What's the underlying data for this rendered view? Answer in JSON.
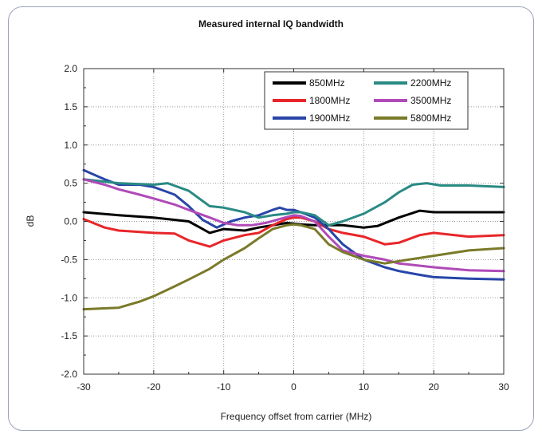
{
  "chart_data": {
    "type": "line",
    "title": "Measured internal IQ bandwidth",
    "xlabel": "Frequency offset from carrier (MHz)",
    "ylabel": "dB",
    "xlim": [
      -30,
      30
    ],
    "ylim": [
      -2.0,
      2.0
    ],
    "xticks": [
      "-30",
      "-20",
      "-10",
      "0",
      "10",
      "20",
      "30"
    ],
    "yticks": [
      "2.0",
      "1.5",
      "1.0",
      "0.5",
      "0.0",
      "-0.5",
      "-1.0",
      "-1.5",
      "-2.0"
    ],
    "grid": true,
    "legend_position": "top-right",
    "series": [
      {
        "name": "850MHz",
        "color": "#000000",
        "x": [
          -30,
          -25,
          -20,
          -15,
          -12,
          -10,
          -7,
          -5,
          -3,
          -1,
          0,
          1,
          3,
          5,
          7,
          10,
          12,
          15,
          18,
          20,
          25,
          30
        ],
        "y": [
          0.12,
          0.08,
          0.05,
          0.0,
          -0.15,
          -0.1,
          -0.12,
          -0.08,
          -0.05,
          -0.02,
          -0.03,
          -0.04,
          -0.05,
          -0.05,
          -0.05,
          -0.08,
          -0.06,
          0.05,
          0.14,
          0.12,
          0.12,
          0.12
        ]
      },
      {
        "name": "1800MHz",
        "color": "#e8262a",
        "x": [
          -30,
          -27,
          -25,
          -20,
          -17,
          -15,
          -12,
          -10,
          -7,
          -5,
          -3,
          -1,
          0,
          1,
          3,
          5,
          7,
          10,
          13,
          15,
          18,
          20,
          25,
          30
        ],
        "y": [
          0.03,
          -0.08,
          -0.12,
          -0.15,
          -0.16,
          -0.25,
          -0.33,
          -0.25,
          -0.18,
          -0.15,
          -0.05,
          0.03,
          0.05,
          0.05,
          0.0,
          -0.1,
          -0.15,
          -0.2,
          -0.3,
          -0.28,
          -0.18,
          -0.15,
          -0.2,
          -0.18
        ]
      },
      {
        "name": "1900MHz",
        "color": "#2845a8",
        "x": [
          -30,
          -27,
          -25,
          -22,
          -20,
          -17,
          -15,
          -13,
          -11,
          -9,
          -7,
          -5,
          -3,
          -2,
          -1,
          0,
          1,
          3,
          5,
          7,
          10,
          13,
          15,
          18,
          20,
          25,
          30
        ],
        "y": [
          0.67,
          0.55,
          0.48,
          0.48,
          0.45,
          0.35,
          0.2,
          0.02,
          -0.08,
          0.0,
          0.05,
          0.08,
          0.15,
          0.18,
          0.15,
          0.15,
          0.12,
          0.05,
          -0.1,
          -0.3,
          -0.5,
          -0.6,
          -0.65,
          -0.7,
          -0.73,
          -0.75,
          -0.76
        ]
      },
      {
        "name": "2200MHz",
        "color": "#2a8a84",
        "x": [
          -30,
          -25,
          -20,
          -18,
          -15,
          -12,
          -10,
          -7,
          -5,
          -3,
          -1,
          0,
          1,
          3,
          5,
          7,
          10,
          13,
          15,
          17,
          19,
          21,
          25,
          30
        ],
        "y": [
          0.55,
          0.5,
          0.48,
          0.5,
          0.4,
          0.2,
          0.18,
          0.12,
          0.05,
          0.08,
          0.1,
          0.12,
          0.12,
          0.08,
          -0.05,
          0.0,
          0.1,
          0.25,
          0.38,
          0.48,
          0.5,
          0.47,
          0.47,
          0.45
        ]
      },
      {
        "name": "3500MHz",
        "color": "#b04ab8",
        "x": [
          -30,
          -27,
          -25,
          -22,
          -20,
          -17,
          -15,
          -12,
          -10,
          -8,
          -6,
          -4,
          -2,
          0,
          1,
          3,
          5,
          7,
          10,
          13,
          15,
          20,
          25,
          30
        ],
        "y": [
          0.55,
          0.48,
          0.42,
          0.35,
          0.3,
          0.22,
          0.15,
          0.05,
          -0.02,
          -0.05,
          -0.05,
          -0.02,
          0.03,
          0.08,
          0.07,
          0.0,
          -0.2,
          -0.38,
          -0.45,
          -0.5,
          -0.55,
          -0.6,
          -0.64,
          -0.65
        ]
      },
      {
        "name": "5800MHz",
        "color": "#7a7a2a",
        "x": [
          -30,
          -25,
          -22,
          -20,
          -17,
          -15,
          -12,
          -10,
          -7,
          -5,
          -3,
          -1,
          0,
          1,
          3,
          5,
          7,
          10,
          13,
          15,
          20,
          25,
          30
        ],
        "y": [
          -1.15,
          -1.13,
          -1.05,
          -0.98,
          -0.85,
          -0.76,
          -0.62,
          -0.5,
          -0.35,
          -0.22,
          -0.1,
          -0.05,
          -0.04,
          -0.05,
          -0.1,
          -0.3,
          -0.4,
          -0.5,
          -0.55,
          -0.52,
          -0.45,
          -0.38,
          -0.35
        ]
      }
    ]
  }
}
